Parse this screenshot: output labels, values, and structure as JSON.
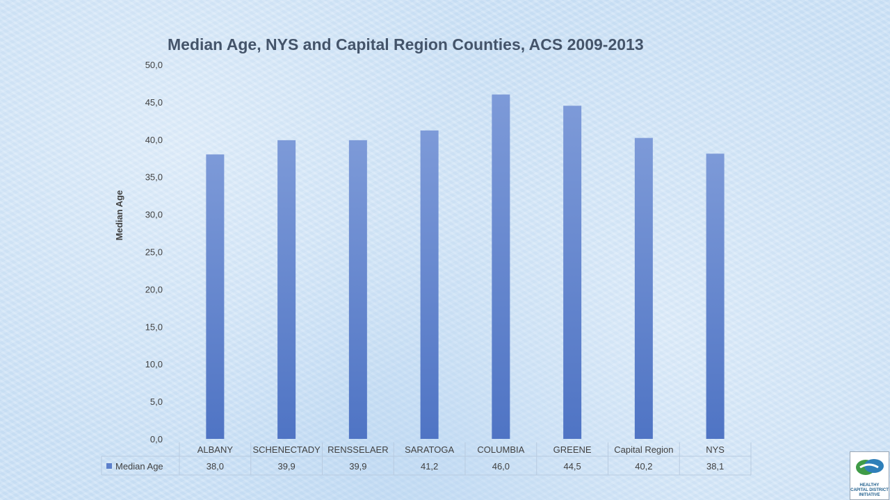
{
  "chart_data": {
    "type": "bar",
    "title": "Median Age, NYS and Capital Region Counties, ACS 2009-2013",
    "ylabel": "Median Age",
    "xlabel": "",
    "categories": [
      "ALBANY",
      "SCHENECTADY",
      "RENSSELAER",
      "SARATOGA",
      "COLUMBIA",
      "GREENE",
      "Capital Region",
      "NYS"
    ],
    "series": [
      {
        "name": "Median Age",
        "values": [
          38.0,
          39.9,
          39.9,
          41.2,
          46.0,
          44.5,
          40.2,
          38.1
        ],
        "value_labels": [
          "38,0",
          "39,9",
          "39,9",
          "41,2",
          "46,0",
          "44,5",
          "40,2",
          "38,1"
        ]
      }
    ],
    "ylim": [
      0,
      50
    ],
    "yticks": [
      0,
      5,
      10,
      15,
      20,
      25,
      30,
      35,
      40,
      45,
      50
    ],
    "ytick_labels": [
      "0,0",
      "5,0",
      "10,0",
      "15,0",
      "20,0",
      "25,0",
      "30,0",
      "35,0",
      "40,0",
      "45,0",
      "50,0"
    ],
    "legend": "data-table-bottom",
    "grid": false,
    "bar_color": "#5b7fcb"
  },
  "logo": {
    "text_lines": [
      "HEALTHY",
      "CAPITAL DISTRICT",
      "INITIATIVE"
    ]
  }
}
